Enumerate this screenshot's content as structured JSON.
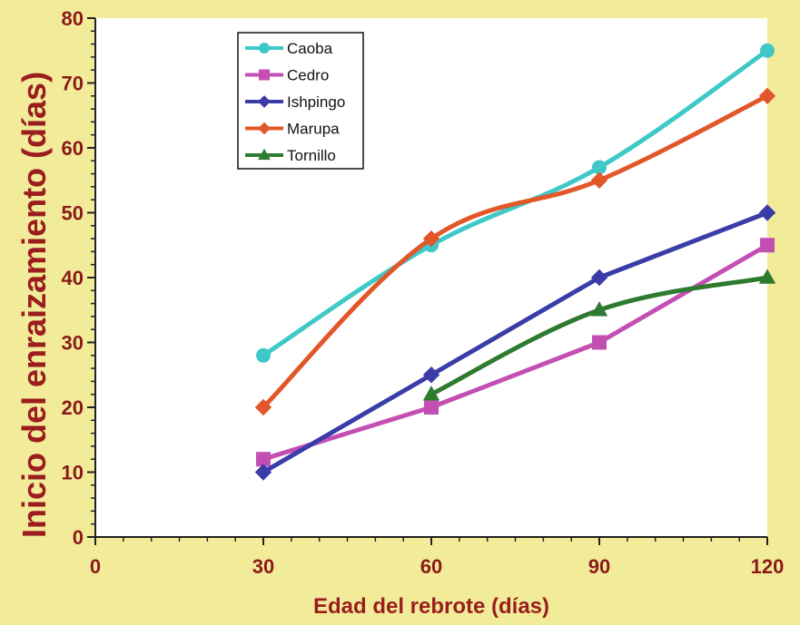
{
  "chart_data": {
    "type": "line",
    "title": "",
    "xlabel": "Edad del rebrote (días)",
    "ylabel": "Inicio del enraizamiento (días)",
    "xlim": [
      0,
      120
    ],
    "ylim": [
      0,
      80
    ],
    "x_ticks": [
      0,
      30,
      60,
      90,
      120
    ],
    "y_ticks": [
      0,
      10,
      20,
      30,
      40,
      50,
      60,
      70,
      80
    ],
    "grid": false,
    "legend_position": "top-left",
    "series": [
      {
        "name": "Caoba",
        "color": "#3fc8c8",
        "marker": "circle",
        "smooth": true,
        "x": [
          30,
          60,
          90,
          120
        ],
        "y": [
          28,
          45,
          57,
          75
        ]
      },
      {
        "name": "Cedro",
        "color": "#c44fb3",
        "marker": "square",
        "smooth": false,
        "x": [
          30,
          60,
          90,
          120
        ],
        "y": [
          12,
          20,
          30,
          45
        ]
      },
      {
        "name": "Ishpingo",
        "color": "#3a3ca8",
        "marker": "diamond",
        "smooth": false,
        "x": [
          30,
          60,
          90,
          120
        ],
        "y": [
          10,
          25,
          40,
          50
        ]
      },
      {
        "name": "Marupa",
        "color": "#e2572a",
        "marker": "diamond",
        "smooth": true,
        "x": [
          30,
          60,
          90,
          120
        ],
        "y": [
          20,
          46,
          55,
          68
        ]
      },
      {
        "name": "Tornillo",
        "color": "#2e7b30",
        "marker": "triangle",
        "smooth": true,
        "x": [
          60,
          90,
          120
        ],
        "y": [
          22,
          35,
          40
        ]
      }
    ]
  }
}
